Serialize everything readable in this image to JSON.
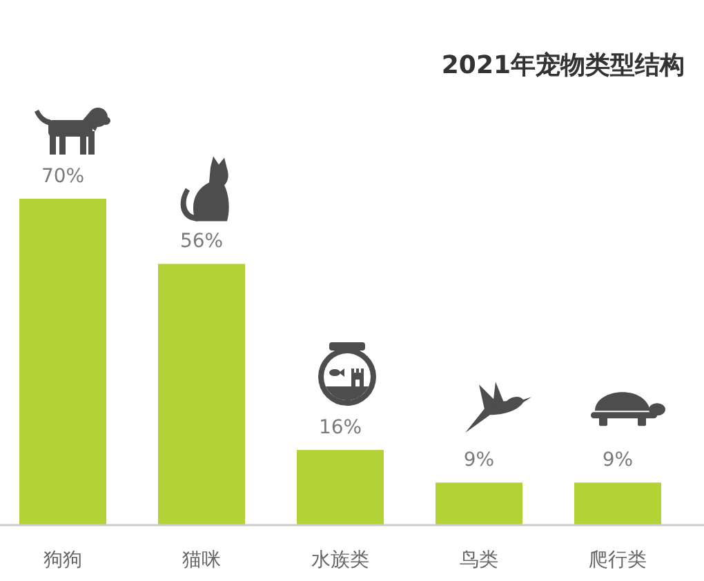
{
  "chart_data": {
    "type": "bar",
    "title": "2021年宠物类型结构",
    "categories": [
      "狗狗",
      "猫咪",
      "水族类",
      "鸟类",
      "爬行类"
    ],
    "values": [
      70,
      56,
      16,
      9,
      9
    ],
    "value_labels": [
      "70%",
      "56%",
      "16%",
      "9%",
      "9%"
    ],
    "color": "#b3d235"
  }
}
